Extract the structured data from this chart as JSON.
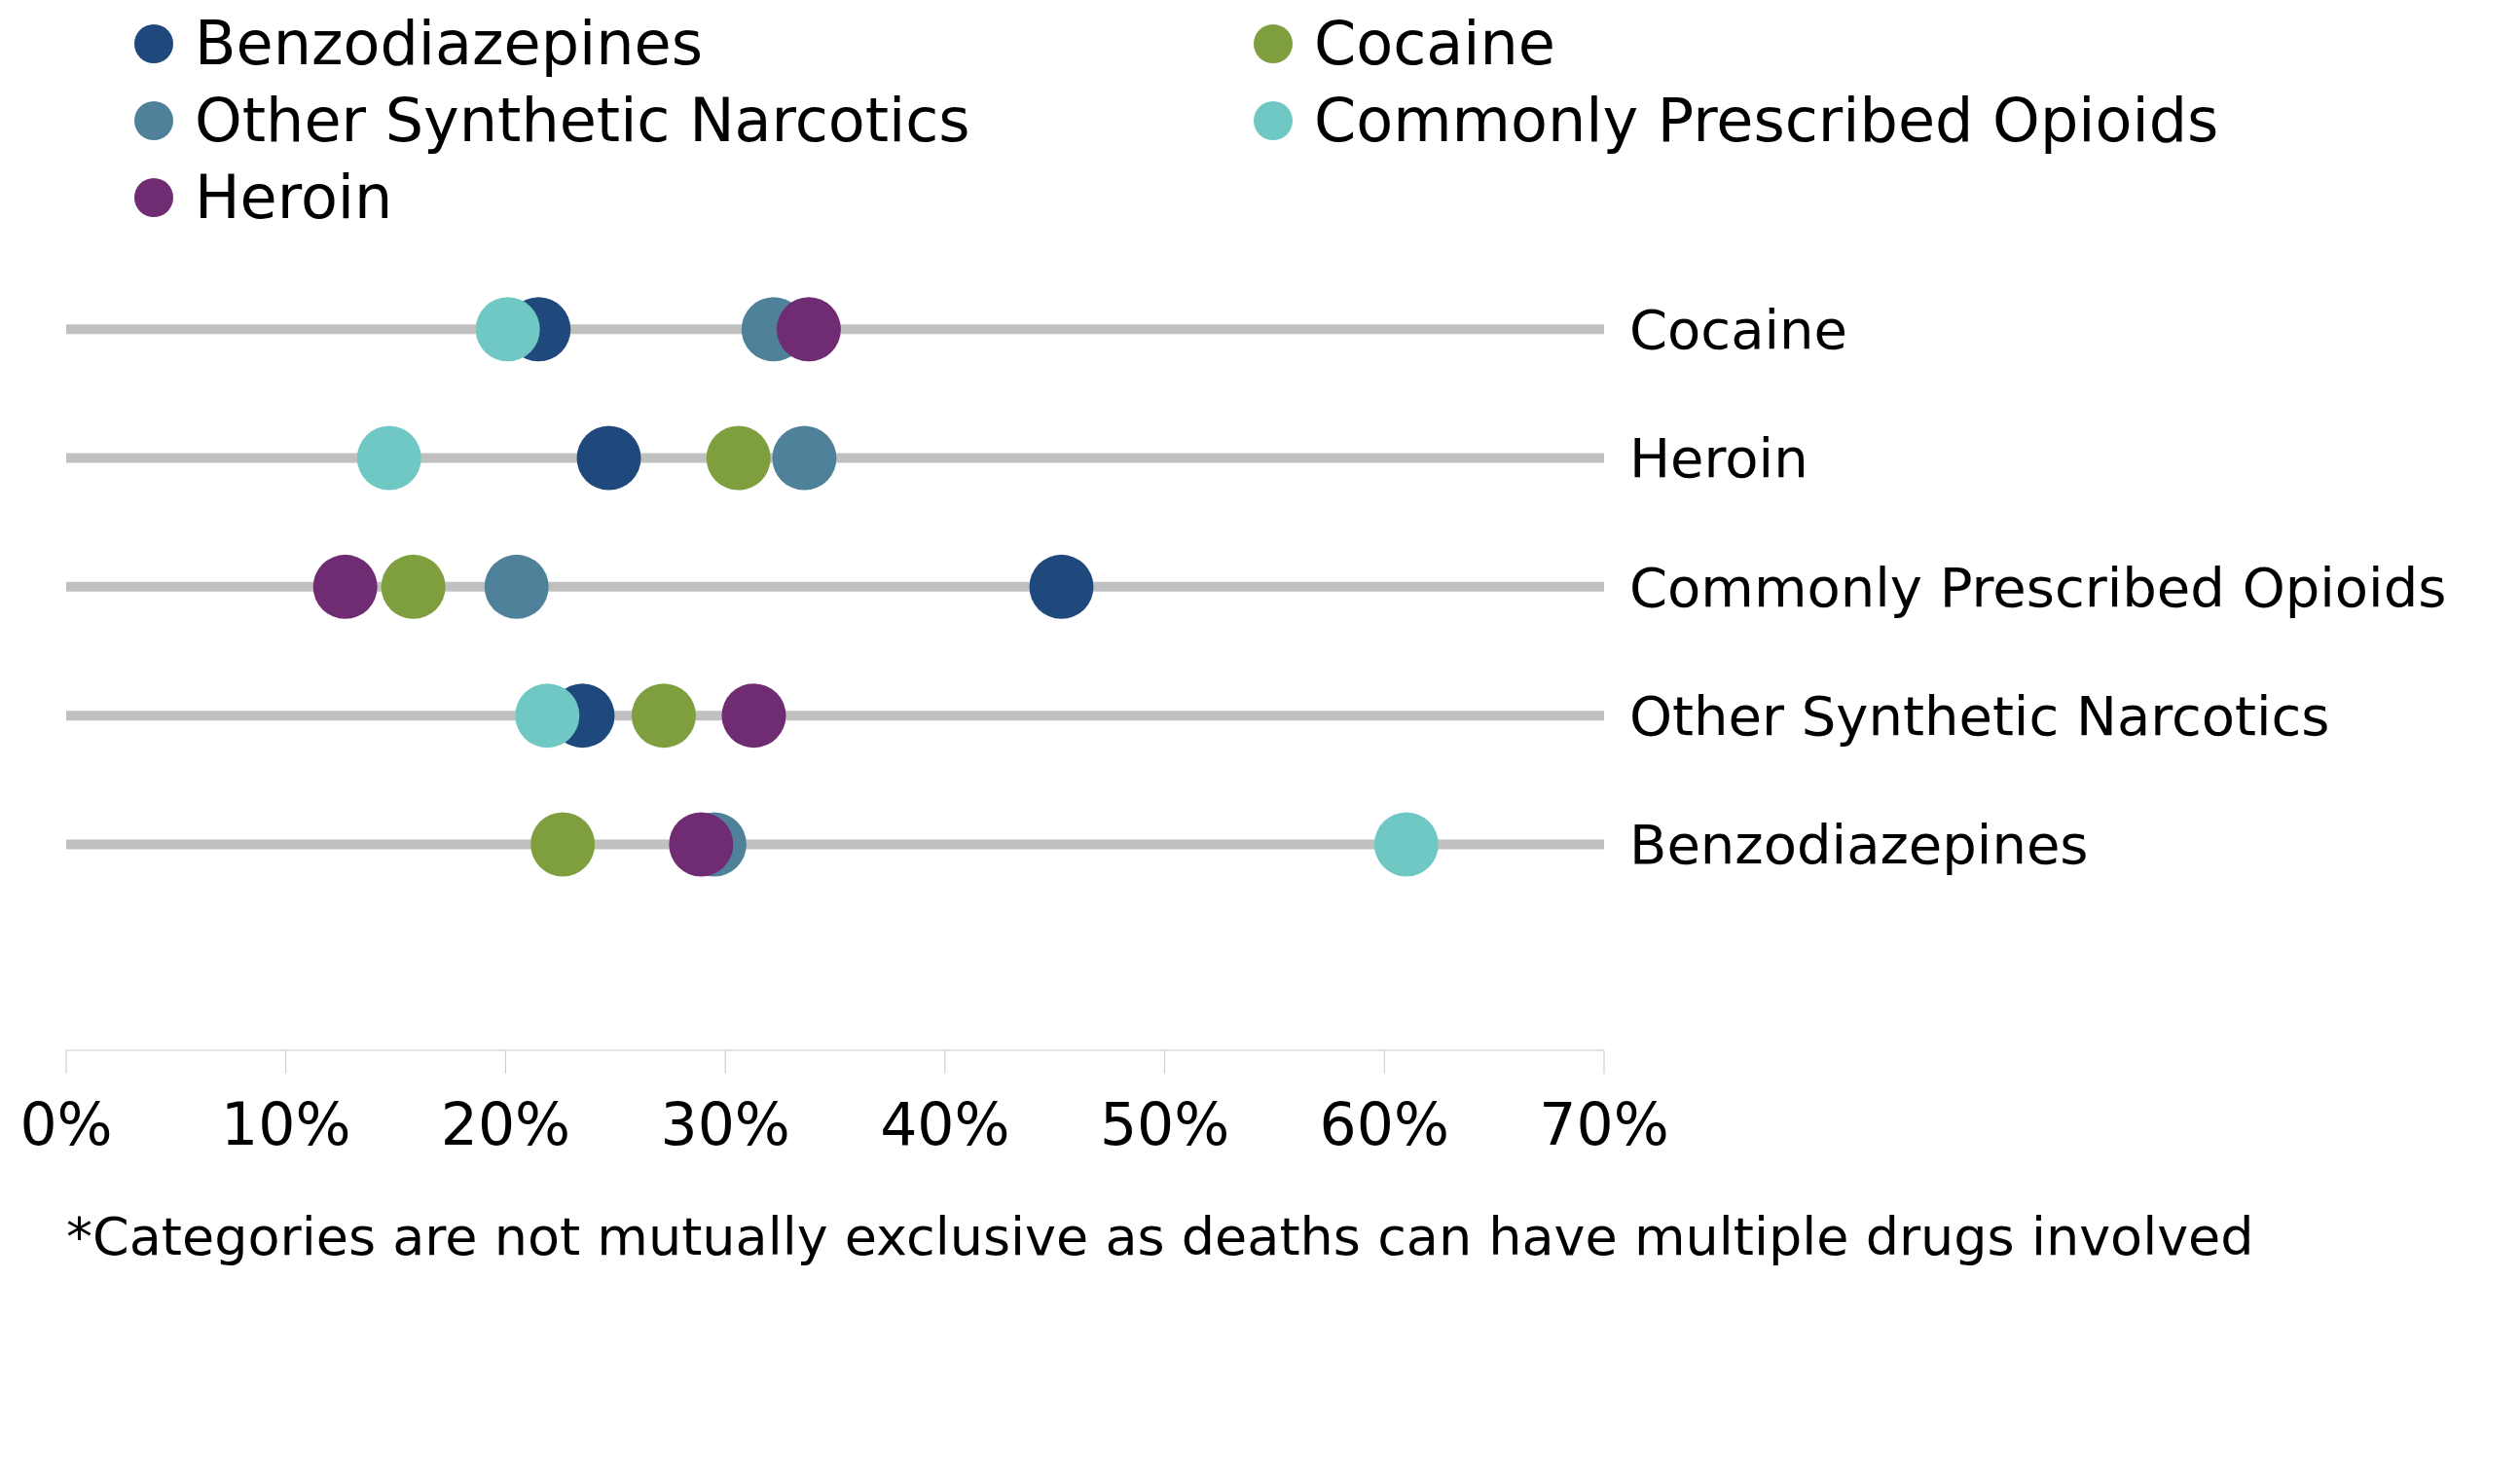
{
  "chart_data": {
    "type": "scatter",
    "orientation": "horizontal",
    "categories": [
      "Cocaine",
      "Heroin",
      "Commonly Prescribed Opioids",
      "Other Synthetic Narcotics",
      "Benzodiazepines"
    ],
    "series": [
      {
        "name": "Benzodiazepines",
        "color": "#1f497d",
        "values": [
          21.5,
          24.7,
          45.3,
          23.5,
          null
        ]
      },
      {
        "name": "Cocaine",
        "color": "#7f9f3f",
        "values": [
          null,
          30.6,
          15.8,
          27.2,
          22.6
        ]
      },
      {
        "name": "Other Synthetic Narcotics",
        "color": "#4f829a",
        "values": [
          32.2,
          33.6,
          20.5,
          null,
          29.5
        ]
      },
      {
        "name": "Commonly Prescribed Opioids",
        "color": "#70c8c4",
        "values": [
          20.1,
          14.7,
          null,
          21.9,
          61.0
        ]
      },
      {
        "name": "Heroin",
        "color": "#6f2c73",
        "values": [
          33.8,
          null,
          12.7,
          31.3,
          28.9
        ]
      }
    ],
    "xlim": [
      0,
      70
    ],
    "xticks": [
      {
        "value": 0,
        "label": "0%"
      },
      {
        "value": 10,
        "label": "10%"
      },
      {
        "value": 20,
        "label": "20%"
      },
      {
        "value": 30,
        "label": "30%"
      },
      {
        "value": 40,
        "label": "40%"
      },
      {
        "value": 50,
        "label": "50%"
      },
      {
        "value": 60,
        "label": "60%"
      },
      {
        "value": 70,
        "label": "70%"
      }
    ],
    "grid": "y",
    "legend": "top",
    "marker": "circle",
    "annotations": [
      "*Categories are not mutually exclusive as deaths can have multiple drugs involved"
    ]
  }
}
